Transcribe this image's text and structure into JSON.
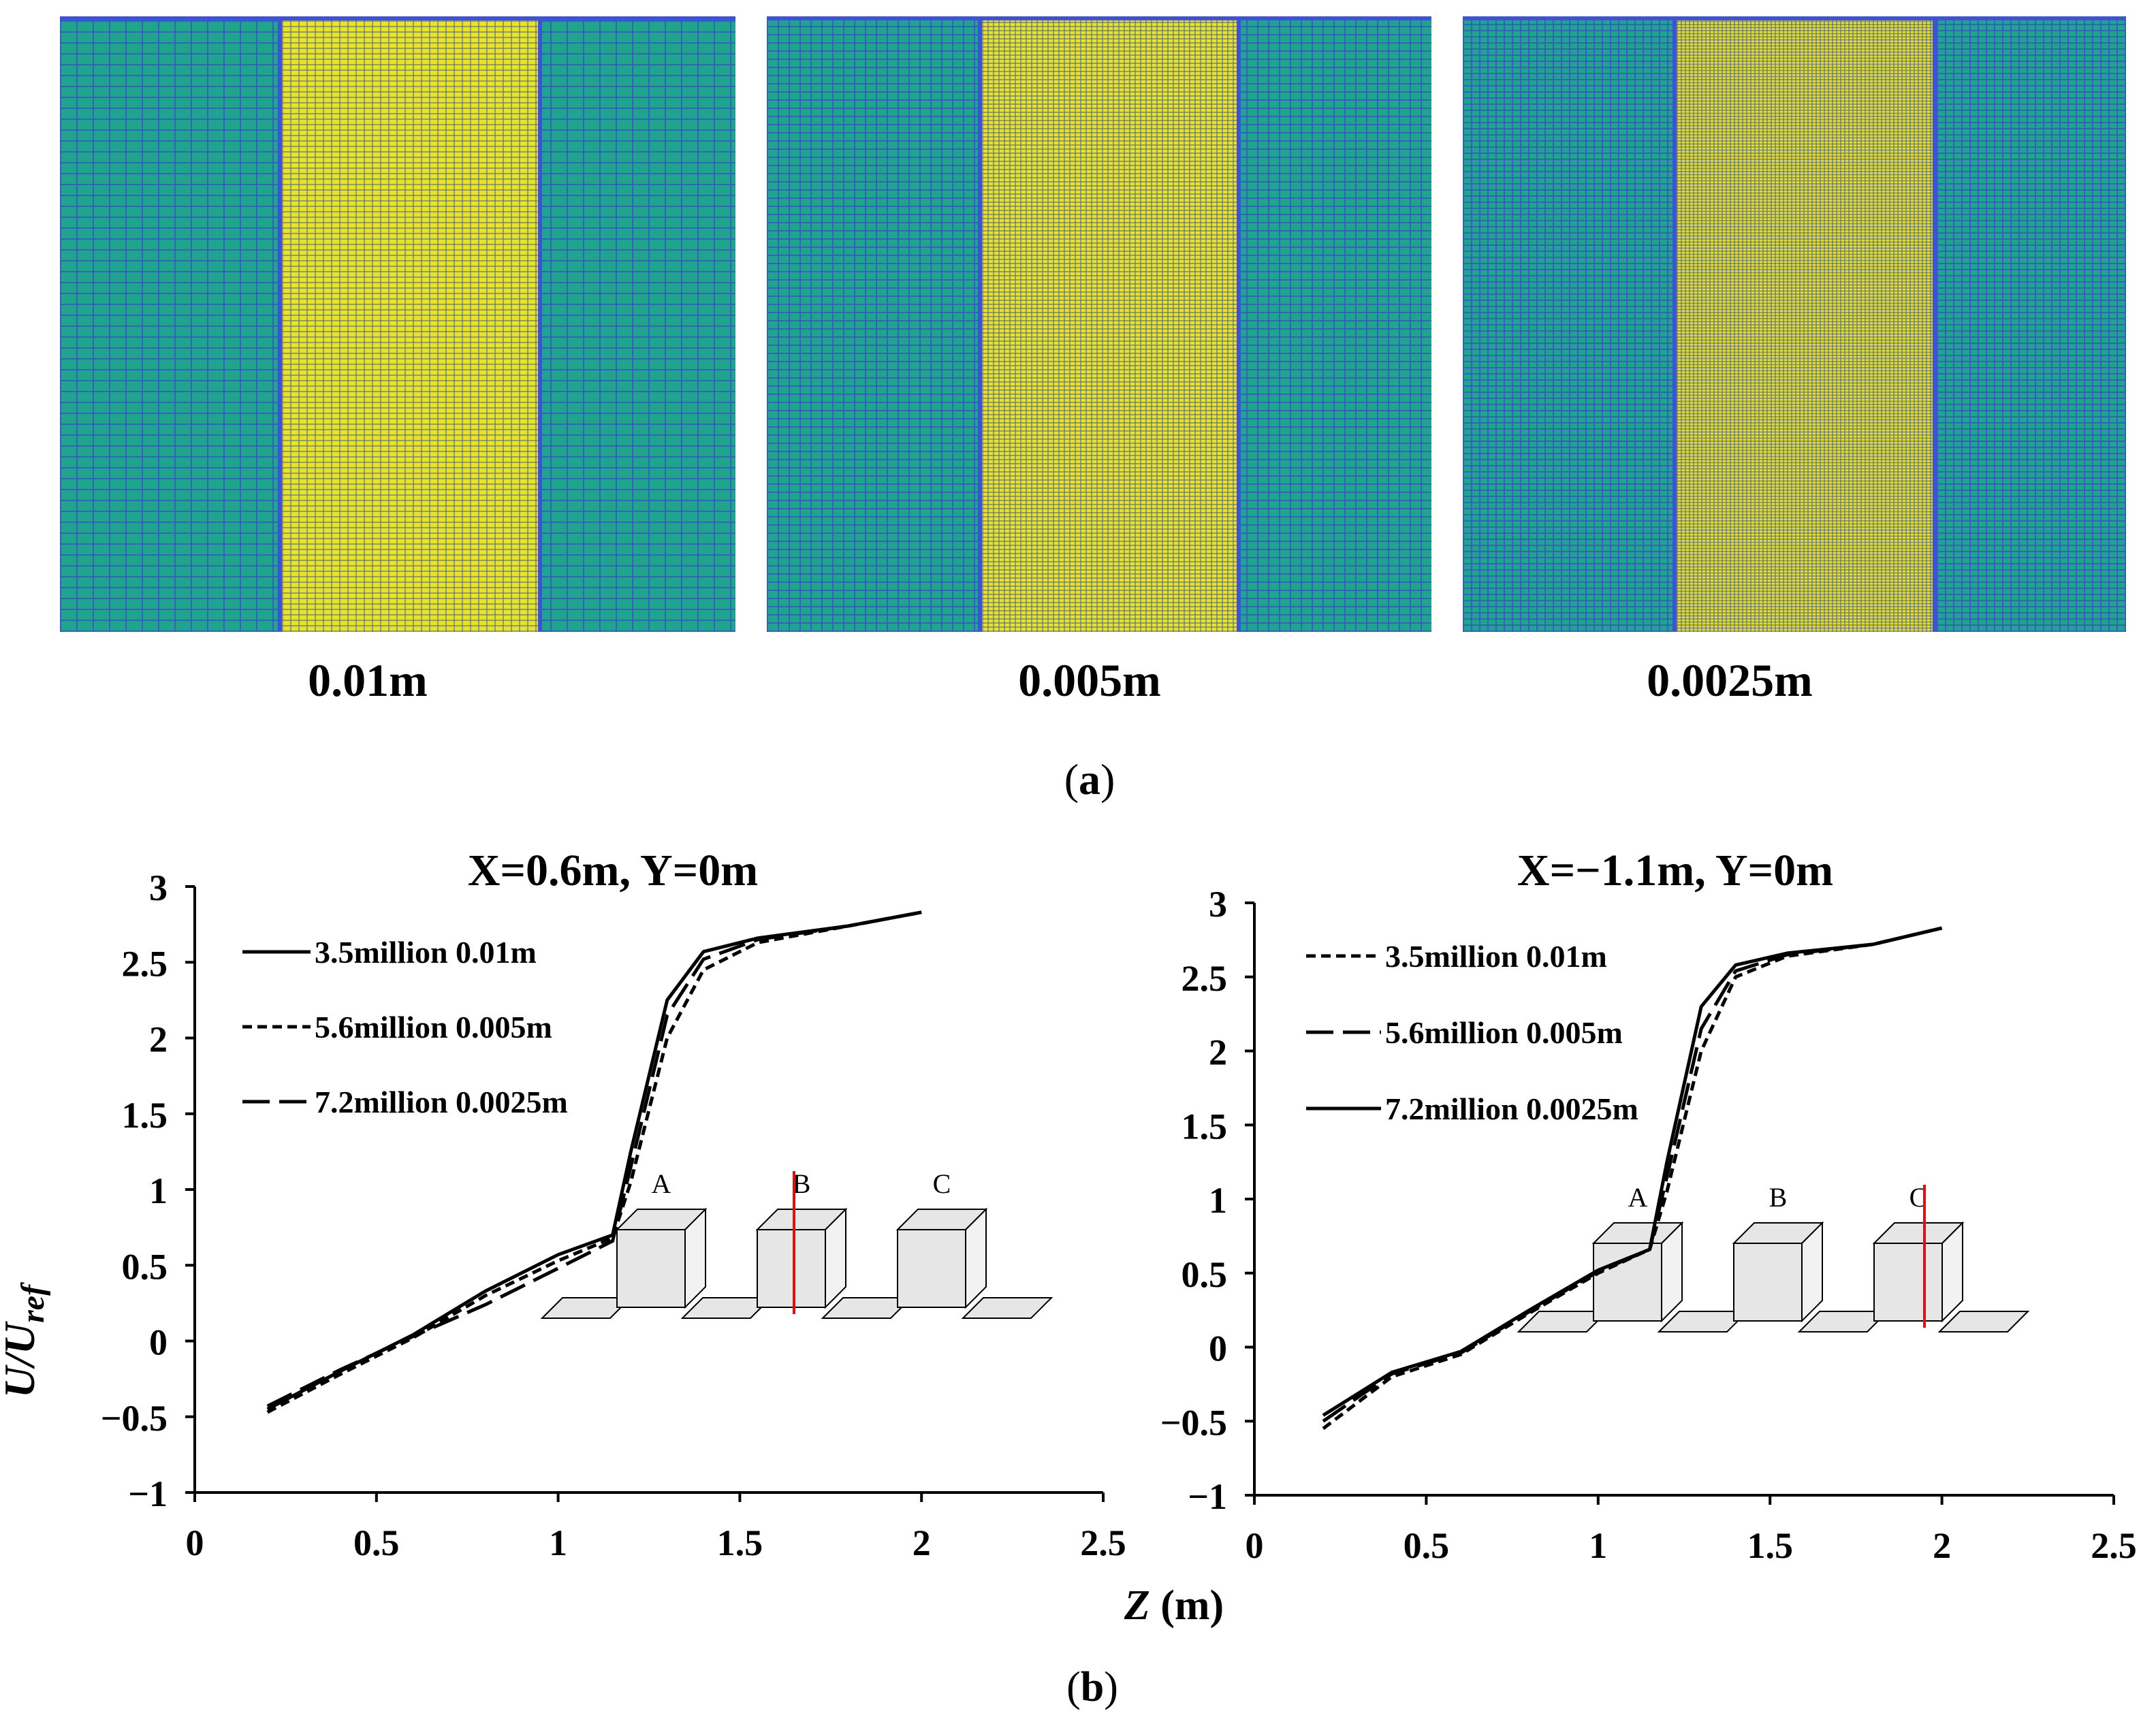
{
  "panel_a": {
    "label_open": "(",
    "label_letter": "a",
    "label_close": ")",
    "mesh_sizes": [
      "0.01m",
      "0.005m",
      "0.0025m"
    ],
    "colors": {
      "coarse": "#1fa58e",
      "fine": "#e8e324",
      "grid_line": "#3b4ec8",
      "border": "#3d52d8"
    }
  },
  "panel_b": {
    "label_open": "(",
    "label_letter": "b",
    "label_close": ")",
    "ylabel": "U/U",
    "ylabel_sub": "ref",
    "xlabel_var": "Z",
    "xlabel_unit": " (m)",
    "inset_labels": [
      "A",
      "B",
      "C"
    ],
    "colors": {
      "line": "#000000",
      "marker": "#e01010",
      "inset_fill": "#e6e6e6"
    }
  },
  "chart_data": [
    {
      "type": "line",
      "title": "X=0.6m, Y=0m",
      "xlabel": "Z (m)",
      "ylabel": "U/Uref",
      "xlim": [
        0,
        2.5
      ],
      "ylim": [
        -1,
        3
      ],
      "xticks": [
        "0",
        "0.5",
        "1",
        "1.5",
        "2",
        "2.5"
      ],
      "yticks": [
        "−1",
        "−0.5",
        "0",
        "0.5",
        "1",
        "1.5",
        "2",
        "2.5",
        "3"
      ],
      "series": [
        {
          "name": "3.5million 0.01m",
          "style": "solid",
          "points": [
            [
              0.2,
              -0.45
            ],
            [
              0.4,
              -0.2
            ],
            [
              0.6,
              0.04
            ],
            [
              0.8,
              0.33
            ],
            [
              1.0,
              0.57
            ],
            [
              1.15,
              0.7
            ],
            [
              1.2,
              1.25
            ],
            [
              1.3,
              2.25
            ],
            [
              1.4,
              2.57
            ],
            [
              1.55,
              2.66
            ],
            [
              1.8,
              2.74
            ],
            [
              2.0,
              2.83
            ]
          ]
        },
        {
          "name": "5.6million 0.005m",
          "style": "dashed",
          "points": [
            [
              0.2,
              -0.47
            ],
            [
              0.4,
              -0.22
            ],
            [
              0.6,
              0.02
            ],
            [
              0.8,
              0.3
            ],
            [
              1.0,
              0.53
            ],
            [
              1.15,
              0.68
            ],
            [
              1.2,
              1.05
            ],
            [
              1.3,
              2.0
            ],
            [
              1.4,
              2.45
            ],
            [
              1.55,
              2.63
            ],
            [
              1.8,
              2.74
            ],
            [
              2.0,
              2.83
            ]
          ]
        },
        {
          "name": "7.2million 0.0025m",
          "style": "longdash",
          "points": [
            [
              0.2,
              -0.43
            ],
            [
              0.4,
              -0.19
            ],
            [
              0.6,
              0.03
            ],
            [
              0.8,
              0.24
            ],
            [
              1.0,
              0.48
            ],
            [
              1.15,
              0.66
            ],
            [
              1.2,
              1.15
            ],
            [
              1.3,
              2.15
            ],
            [
              1.4,
              2.52
            ],
            [
              1.55,
              2.65
            ],
            [
              1.8,
              2.74
            ],
            [
              2.0,
              2.83
            ]
          ]
        }
      ],
      "marker_z": 1.65
    },
    {
      "type": "line",
      "title": "X=−1.1m, Y=0m",
      "xlabel": "Z (m)",
      "ylabel": "U/Uref",
      "xlim": [
        0,
        2.5
      ],
      "ylim": [
        -1,
        3
      ],
      "xticks": [
        "0",
        "0.5",
        "1",
        "1.5",
        "2",
        "2.5"
      ],
      "yticks": [
        "−1",
        "−0.5",
        "0",
        "0.5",
        "1",
        "1.5",
        "2",
        "2.5",
        "3"
      ],
      "series": [
        {
          "name": "3.5million 0.01m",
          "style": "dashed",
          "points": [
            [
              0.2,
              -0.55
            ],
            [
              0.4,
              -0.2
            ],
            [
              0.6,
              -0.05
            ],
            [
              0.8,
              0.23
            ],
            [
              1.0,
              0.5
            ],
            [
              1.15,
              0.66
            ],
            [
              1.2,
              1.05
            ],
            [
              1.3,
              2.0
            ],
            [
              1.4,
              2.5
            ],
            [
              1.55,
              2.64
            ],
            [
              1.8,
              2.72
            ],
            [
              2.0,
              2.83
            ]
          ]
        },
        {
          "name": "5.6million 0.005m",
          "style": "longdash",
          "points": [
            [
              0.2,
              -0.5
            ],
            [
              0.4,
              -0.18
            ],
            [
              0.6,
              -0.04
            ],
            [
              0.8,
              0.24
            ],
            [
              1.0,
              0.51
            ],
            [
              1.15,
              0.66
            ],
            [
              1.2,
              1.15
            ],
            [
              1.3,
              2.15
            ],
            [
              1.4,
              2.54
            ],
            [
              1.55,
              2.65
            ],
            [
              1.8,
              2.72
            ],
            [
              2.0,
              2.83
            ]
          ]
        },
        {
          "name": "7.2million 0.0025m",
          "style": "solid",
          "points": [
            [
              0.2,
              -0.46
            ],
            [
              0.4,
              -0.17
            ],
            [
              0.6,
              -0.03
            ],
            [
              0.8,
              0.25
            ],
            [
              1.0,
              0.52
            ],
            [
              1.15,
              0.66
            ],
            [
              1.2,
              1.25
            ],
            [
              1.3,
              2.3
            ],
            [
              1.4,
              2.58
            ],
            [
              1.55,
              2.66
            ],
            [
              1.8,
              2.72
            ],
            [
              2.0,
              2.83
            ]
          ]
        }
      ],
      "marker_z": 1.95
    }
  ]
}
